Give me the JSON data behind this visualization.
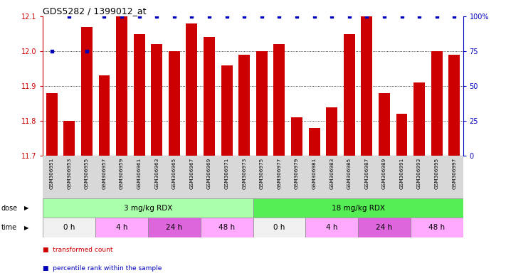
{
  "title": "GDS5282 / 1399012_at",
  "samples": [
    "GSM306951",
    "GSM306953",
    "GSM306955",
    "GSM306957",
    "GSM306959",
    "GSM306961",
    "GSM306963",
    "GSM306965",
    "GSM306967",
    "GSM306969",
    "GSM306971",
    "GSM306973",
    "GSM306975",
    "GSM306977",
    "GSM306979",
    "GSM306981",
    "GSM306983",
    "GSM306985",
    "GSM306987",
    "GSM306989",
    "GSM306991",
    "GSM306993",
    "GSM306995",
    "GSM306997"
  ],
  "bar_values": [
    11.88,
    11.8,
    12.07,
    11.93,
    12.1,
    12.05,
    12.02,
    12.0,
    12.08,
    12.04,
    11.96,
    11.99,
    12.0,
    12.02,
    11.81,
    11.78,
    11.84,
    12.05,
    12.1,
    11.88,
    11.82,
    11.91,
    12.0,
    11.99
  ],
  "percentile_values": [
    75,
    100,
    75,
    100,
    100,
    100,
    100,
    100,
    100,
    100,
    100,
    100,
    100,
    100,
    100,
    100,
    100,
    100,
    100,
    100,
    100,
    100,
    100,
    100
  ],
  "bar_color": "#cc0000",
  "percentile_color": "#0000bb",
  "ylim_left": [
    11.7,
    12.1
  ],
  "ylim_right": [
    0,
    100
  ],
  "yticks_left": [
    11.7,
    11.8,
    11.9,
    12.0,
    12.1
  ],
  "yticks_right": [
    0,
    25,
    50,
    75,
    100
  ],
  "ytick_labels_right": [
    "0",
    "25",
    "50",
    "75",
    "100%"
  ],
  "dose_groups": [
    {
      "label": "3 mg/kg RDX",
      "start": 0,
      "end": 12,
      "color": "#aaffaa"
    },
    {
      "label": "18 mg/kg RDX",
      "start": 12,
      "end": 24,
      "color": "#55ee55"
    }
  ],
  "time_groups": [
    {
      "label": "0 h",
      "start": 0,
      "end": 3,
      "color": "#f0f0f0"
    },
    {
      "label": "4 h",
      "start": 3,
      "end": 6,
      "color": "#ffaaff"
    },
    {
      "label": "24 h",
      "start": 6,
      "end": 9,
      "color": "#dd66dd"
    },
    {
      "label": "48 h",
      "start": 9,
      "end": 12,
      "color": "#ffaaff"
    },
    {
      "label": "0 h",
      "start": 12,
      "end": 15,
      "color": "#f0f0f0"
    },
    {
      "label": "4 h",
      "start": 15,
      "end": 18,
      "color": "#ffaaff"
    },
    {
      "label": "24 h",
      "start": 18,
      "end": 21,
      "color": "#dd66dd"
    },
    {
      "label": "48 h",
      "start": 21,
      "end": 24,
      "color": "#ffaaff"
    }
  ],
  "dose_label": "dose",
  "time_label": "time",
  "legend_items": [
    {
      "label": "transformed count",
      "color": "#cc0000"
    },
    {
      "label": "percentile rank within the sample",
      "color": "#0000bb"
    }
  ],
  "bg_color": "#ffffff",
  "tick_color_left": "#cc0000",
  "tick_color_right": "#0000bb"
}
